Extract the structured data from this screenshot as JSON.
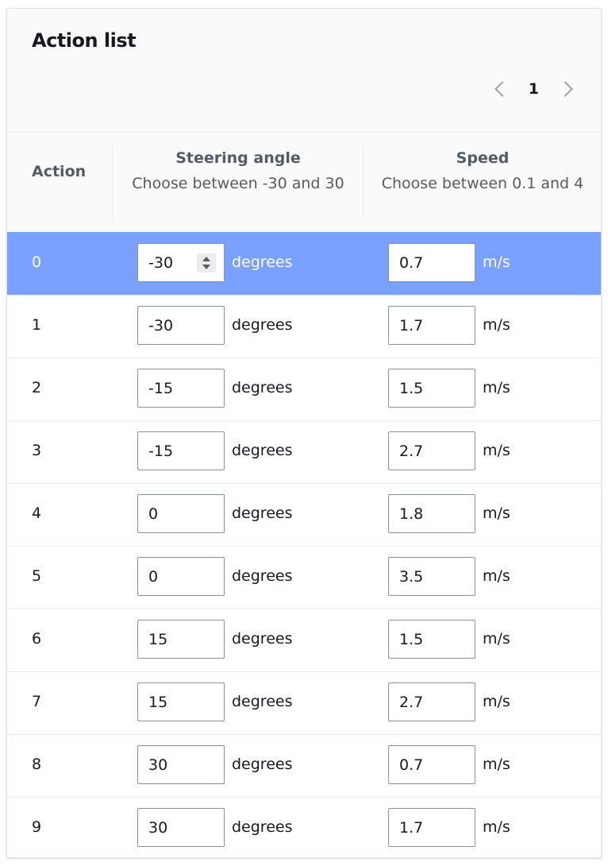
{
  "title": "Action list",
  "pagination": {
    "current_page": "1"
  },
  "columns": {
    "action": "Action",
    "steering": {
      "label": "Steering angle",
      "hint": "Choose between -30 and 30"
    },
    "speed": {
      "label": "Speed",
      "hint": "Choose between 0.1 and 4"
    }
  },
  "units": {
    "steering": "degrees",
    "speed": "m/s"
  },
  "selected_row": 0,
  "colors": {
    "selected_row": "#7aa1ff"
  },
  "rows": [
    {
      "action": "0",
      "steering": "-30",
      "speed": "0.7"
    },
    {
      "action": "1",
      "steering": "-30",
      "speed": "1.7"
    },
    {
      "action": "2",
      "steering": "-15",
      "speed": "1.5"
    },
    {
      "action": "3",
      "steering": "-15",
      "speed": "2.7"
    },
    {
      "action": "4",
      "steering": "0",
      "speed": "1.8"
    },
    {
      "action": "5",
      "steering": "0",
      "speed": "3.5"
    },
    {
      "action": "6",
      "steering": "15",
      "speed": "1.5"
    },
    {
      "action": "7",
      "steering": "15",
      "speed": "2.7"
    },
    {
      "action": "8",
      "steering": "30",
      "speed": "0.7"
    },
    {
      "action": "9",
      "steering": "30",
      "speed": "1.7"
    }
  ]
}
